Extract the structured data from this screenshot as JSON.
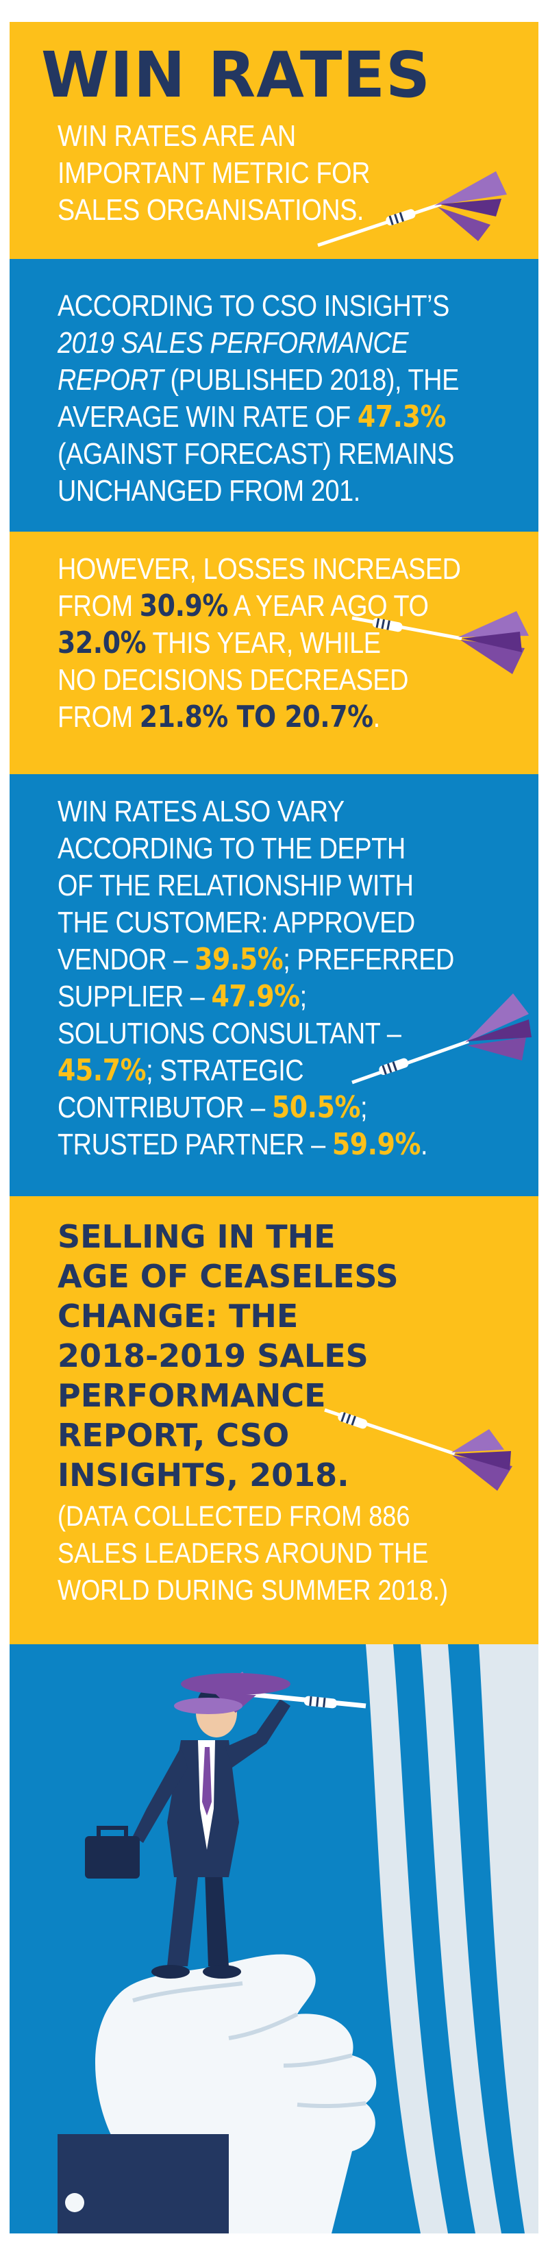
{
  "header": {
    "title": "WIN RATES",
    "subtitle_lines": [
      "WIN RATES ARE AN",
      "IMPORTANT METRIC FOR",
      "SALES ORGANISATIONS."
    ]
  },
  "section2": {
    "l1": "ACCORDING TO CSO INSIGHT’S",
    "l2": "2019 SALES PERFORMANCE",
    "l3_a": "REPORT",
    "l3_b": " (PUBLISHED 2018), THE",
    "l4_a": "AVERAGE WIN RATE OF ",
    "l4_b": "47.3%",
    "l5": "(AGAINST FORECAST) REMAINS",
    "l6": "UNCHANGED FROM 201."
  },
  "section3": {
    "l1": "HOWEVER, LOSSES INCREASED",
    "l2_a": "FROM ",
    "l2_b": "30.9%",
    "l2_c": " A YEAR AGO TO",
    "l3_a": "32.0%",
    "l3_b": " THIS YEAR, WHILE",
    "l4": "NO DECISIONS DECREASED",
    "l5_a": "FROM ",
    "l5_b": "21.8% TO 20.7%",
    "l5_c": "."
  },
  "section4": {
    "l1": "WIN RATES ALSO VARY",
    "l2": "ACCORDING TO THE DEPTH",
    "l3": "OF THE RELATIONSHIP WITH",
    "l4": "THE CUSTOMER: APPROVED",
    "l5_a": "VENDOR – ",
    "l5_b": "39.5%",
    "l5_c": "; PREFERRED",
    "l6_a": "SUPPLIER – ",
    "l6_b": "47.9%",
    "l6_c": ";",
    "l7": "SOLUTIONS CONSULTANT –",
    "l8_a": "45.7%",
    "l8_b": "; STRATEGIC",
    "l9_a": "CONTRIBUTOR – ",
    "l9_b": "50.5%",
    "l9_c": ";",
    "l10_a": "TRUSTED PARTNER – ",
    "l10_b": "59.9%",
    "l10_c": "."
  },
  "section5": {
    "title_lines": [
      "SELLING IN THE",
      "AGE OF CEASELESS",
      "CHANGE: THE",
      "2018-2019 SALES",
      "PERFORMANCE",
      "REPORT, CSO",
      "INSIGHTS, 2018."
    ],
    "note_lines": [
      "(DATA COLLECTED FROM 886",
      "SALES LEADERS AROUND THE",
      "WORLD DURING SUMMER 2018.)"
    ]
  },
  "colors": {
    "yellow": "#fdc01a",
    "blue": "#0c83c4",
    "navy": "#233761",
    "purple": "#7c4aa3",
    "target_light": "#dfe8ef"
  },
  "icons": [
    "dart-icon",
    "businessman-illustration",
    "target-illustration",
    "giant-hand-illustration",
    "briefcase-icon"
  ]
}
